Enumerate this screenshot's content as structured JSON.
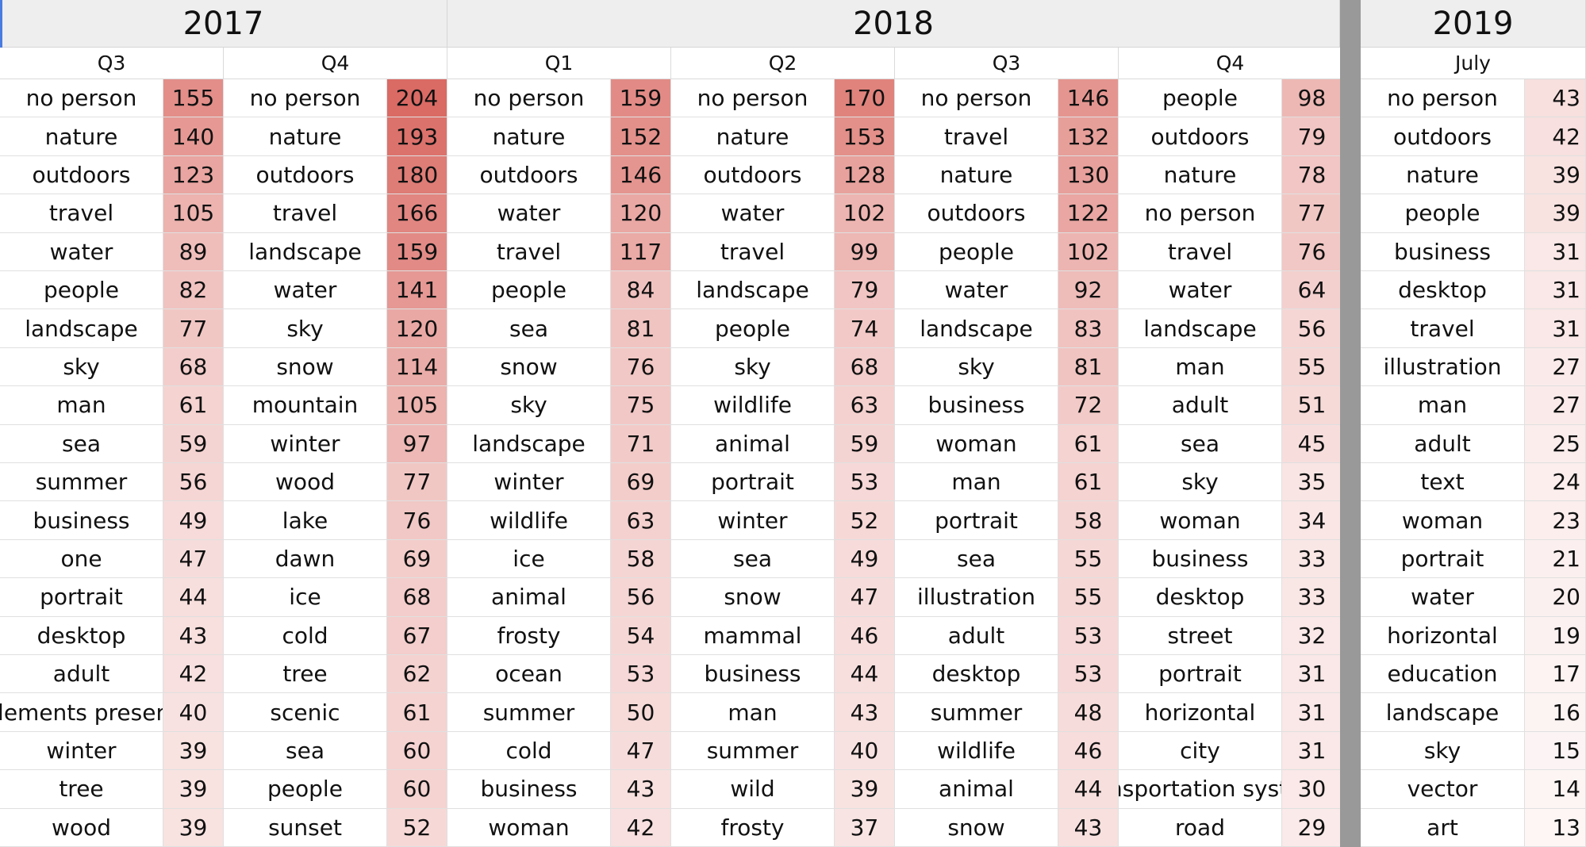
{
  "colors": {
    "heat_max": "#d9665f",
    "heat_min": "#ffffff",
    "header_bg": "#eeeeee",
    "frozen_divider": "#999999"
  },
  "years": [
    {
      "label": "2017",
      "span": 2
    },
    {
      "label": "2018",
      "span": 4
    },
    {
      "label": "2019",
      "span": 1
    }
  ],
  "quarters": [
    {
      "label": "Q3",
      "rows": [
        [
          "no person",
          155
        ],
        [
          "nature",
          140
        ],
        [
          "outdoors",
          123
        ],
        [
          "travel",
          105
        ],
        [
          "water",
          89
        ],
        [
          "people",
          82
        ],
        [
          "landscape",
          77
        ],
        [
          "sky",
          68
        ],
        [
          "man",
          61
        ],
        [
          "sea",
          59
        ],
        [
          "summer",
          56
        ],
        [
          "business",
          49
        ],
        [
          "one",
          47
        ],
        [
          "portrait",
          44
        ],
        [
          "desktop",
          43
        ],
        [
          "adult",
          42
        ],
        [
          "elements present",
          40
        ],
        [
          "winter",
          39
        ],
        [
          "tree",
          39
        ],
        [
          "wood",
          39
        ]
      ]
    },
    {
      "label": "Q4",
      "rows": [
        [
          "no person",
          204
        ],
        [
          "nature",
          193
        ],
        [
          "outdoors",
          180
        ],
        [
          "travel",
          166
        ],
        [
          "landscape",
          159
        ],
        [
          "water",
          141
        ],
        [
          "sky",
          120
        ],
        [
          "snow",
          114
        ],
        [
          "mountain",
          105
        ],
        [
          "winter",
          97
        ],
        [
          "wood",
          77
        ],
        [
          "lake",
          76
        ],
        [
          "dawn",
          69
        ],
        [
          "ice",
          68
        ],
        [
          "cold",
          67
        ],
        [
          "tree",
          62
        ],
        [
          "scenic",
          61
        ],
        [
          "sea",
          60
        ],
        [
          "people",
          60
        ],
        [
          "sunset",
          52
        ]
      ]
    },
    {
      "label": "Q1",
      "rows": [
        [
          "no person",
          159
        ],
        [
          "nature",
          152
        ],
        [
          "outdoors",
          146
        ],
        [
          "water",
          120
        ],
        [
          "travel",
          117
        ],
        [
          "people",
          84
        ],
        [
          "sea",
          81
        ],
        [
          "snow",
          76
        ],
        [
          "sky",
          75
        ],
        [
          "landscape",
          71
        ],
        [
          "winter",
          69
        ],
        [
          "wildlife",
          63
        ],
        [
          "ice",
          58
        ],
        [
          "animal",
          56
        ],
        [
          "frosty",
          54
        ],
        [
          "ocean",
          53
        ],
        [
          "summer",
          50
        ],
        [
          "cold",
          47
        ],
        [
          "business",
          43
        ],
        [
          "woman",
          42
        ]
      ]
    },
    {
      "label": "Q2",
      "rows": [
        [
          "no person",
          170
        ],
        [
          "nature",
          153
        ],
        [
          "outdoors",
          128
        ],
        [
          "water",
          102
        ],
        [
          "travel",
          99
        ],
        [
          "landscape",
          79
        ],
        [
          "people",
          74
        ],
        [
          "sky",
          68
        ],
        [
          "wildlife",
          63
        ],
        [
          "animal",
          59
        ],
        [
          "portrait",
          53
        ],
        [
          "winter",
          52
        ],
        [
          "sea",
          49
        ],
        [
          "snow",
          47
        ],
        [
          "mammal",
          46
        ],
        [
          "business",
          44
        ],
        [
          "man",
          43
        ],
        [
          "summer",
          40
        ],
        [
          "wild",
          39
        ],
        [
          "frosty",
          37
        ]
      ]
    },
    {
      "label": "Q3",
      "rows": [
        [
          "no person",
          146
        ],
        [
          "travel",
          132
        ],
        [
          "nature",
          130
        ],
        [
          "outdoors",
          122
        ],
        [
          "people",
          102
        ],
        [
          "water",
          92
        ],
        [
          "landscape",
          83
        ],
        [
          "sky",
          81
        ],
        [
          "business",
          72
        ],
        [
          "woman",
          61
        ],
        [
          "man",
          61
        ],
        [
          "portrait",
          58
        ],
        [
          "sea",
          55
        ],
        [
          "illustration",
          55
        ],
        [
          "adult",
          53
        ],
        [
          "desktop",
          53
        ],
        [
          "summer",
          48
        ],
        [
          "wildlife",
          46
        ],
        [
          "animal",
          44
        ],
        [
          "snow",
          43
        ]
      ]
    },
    {
      "label": "Q4",
      "rows": [
        [
          "people",
          98
        ],
        [
          "outdoors",
          79
        ],
        [
          "nature",
          78
        ],
        [
          "no person",
          77
        ],
        [
          "travel",
          76
        ],
        [
          "water",
          64
        ],
        [
          "landscape",
          56
        ],
        [
          "man",
          55
        ],
        [
          "adult",
          51
        ],
        [
          "sea",
          45
        ],
        [
          "sky",
          35
        ],
        [
          "woman",
          34
        ],
        [
          "business",
          33
        ],
        [
          "desktop",
          33
        ],
        [
          "street",
          32
        ],
        [
          "portrait",
          31
        ],
        [
          "horizontal",
          31
        ],
        [
          "city",
          31
        ],
        [
          "transportation system",
          30
        ],
        [
          "road",
          29
        ]
      ]
    },
    {
      "label": "July",
      "rows": [
        [
          "no person",
          43
        ],
        [
          "outdoors",
          42
        ],
        [
          "nature",
          39
        ],
        [
          "people",
          39
        ],
        [
          "business",
          31
        ],
        [
          "desktop",
          31
        ],
        [
          "travel",
          31
        ],
        [
          "illustration",
          27
        ],
        [
          "man",
          27
        ],
        [
          "adult",
          25
        ],
        [
          "text",
          24
        ],
        [
          "woman",
          23
        ],
        [
          "portrait",
          21
        ],
        [
          "water",
          20
        ],
        [
          "horizontal",
          19
        ],
        [
          "education",
          17
        ],
        [
          "landscape",
          16
        ],
        [
          "sky",
          15
        ],
        [
          "vector",
          14
        ],
        [
          "art",
          13
        ]
      ]
    }
  ]
}
